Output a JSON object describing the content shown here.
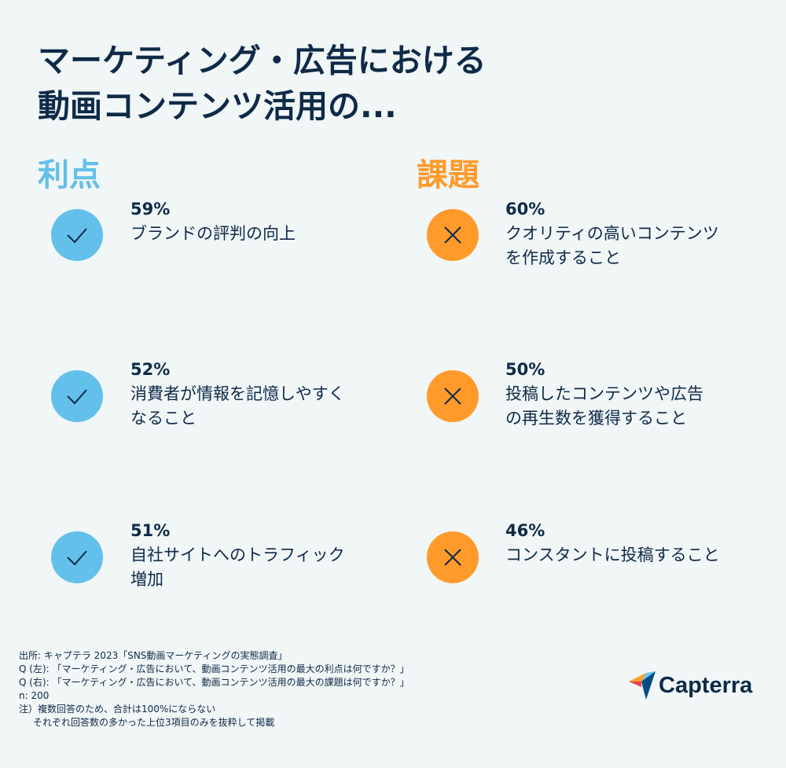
{
  "title": {
    "line1": "マーケティング・広告における",
    "line2": "動画コンテンツ活用の..."
  },
  "benefits": {
    "heading": "利点",
    "color": "#63c0ea",
    "items": [
      {
        "percent": "59%",
        "label": "ブランドの評判の向上",
        "icon": "check-icon"
      },
      {
        "percent": "52%",
        "label": "消費者が情報を記憶しやすく\nなること",
        "icon": "check-icon"
      },
      {
        "percent": "51%",
        "label": "自社サイトへのトラフィック\n増加",
        "icon": "check-icon"
      }
    ]
  },
  "challenges": {
    "heading": "課題",
    "color": "#ff9a2b",
    "items": [
      {
        "percent": "60%",
        "label": "クオリティの高いコンテンツ\nを作成すること",
        "icon": "cross-icon"
      },
      {
        "percent": "50%",
        "label": "投稿したコンテンツや広告\nの再生数を獲得すること",
        "icon": "cross-icon"
      },
      {
        "percent": "46%",
        "label": "コンスタントに投稿すること",
        "icon": "cross-icon"
      }
    ]
  },
  "footnote": {
    "source": "出所: キャプテラ 2023「SNS動画マーケティングの実態調査」",
    "q_left": "Q (左): 「マーケティング・広告において、動画コンテンツ活用の最大の利点は何ですか？」",
    "q_right": "Q (右): 「マーケティング・広告において、動画コンテンツ活用の最大の課題は何ですか？」",
    "n": "n: 200",
    "note1": "注）複数回答のため、合計は100%にならない",
    "note2": "それぞれ回答数の多かった上位3項目のみを抜粋して掲載"
  },
  "logo": {
    "text": "Capterra",
    "colors": [
      "#ff9d28",
      "#68c5ed",
      "#044d80",
      "#e54747"
    ]
  }
}
